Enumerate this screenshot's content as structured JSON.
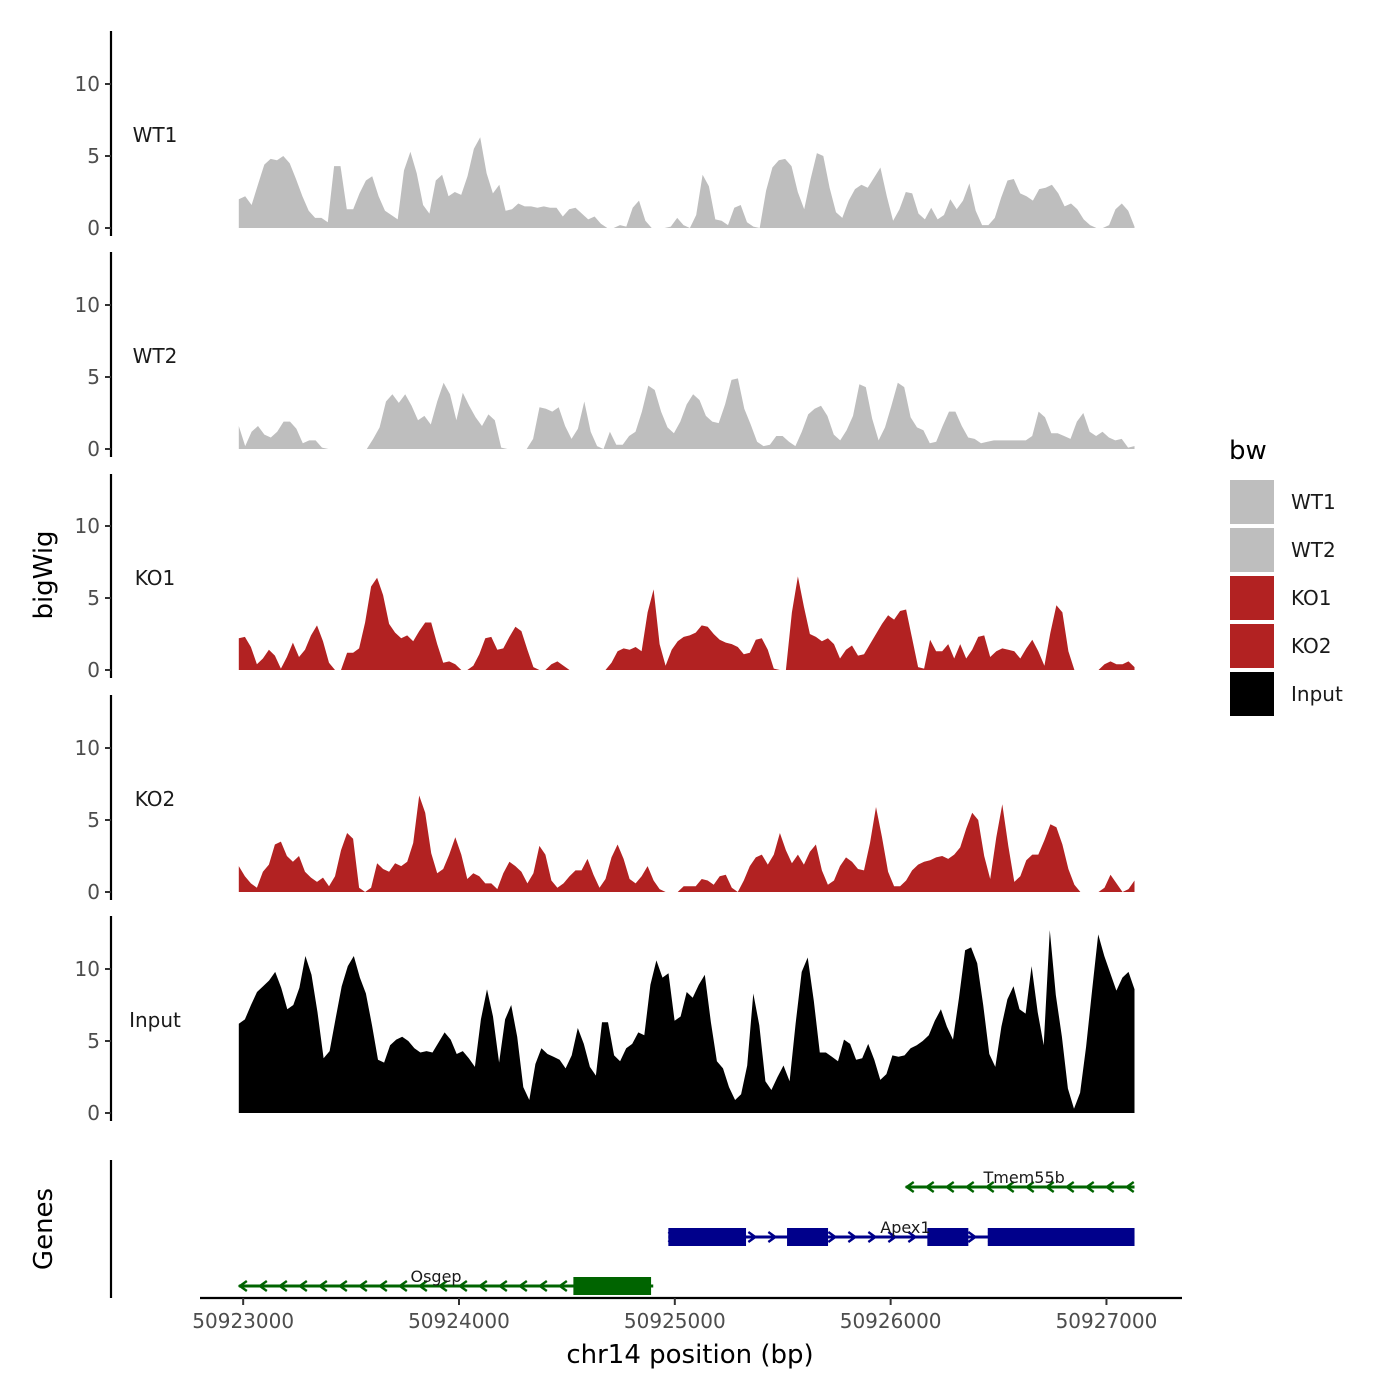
{
  "chart_data": {
    "type": "area",
    "title": "",
    "ylabel": "bigWig",
    "xlabel": "chr14 position (bp)",
    "genes_label": "Genes",
    "xlim": [
      50922800,
      50927350
    ],
    "ylim": [
      0,
      13
    ],
    "x_start": 50922980,
    "x_end": 50927130,
    "x_ticks": [
      50923000,
      50924000,
      50925000,
      50926000,
      50927000
    ],
    "x_tick_labels": [
      "50923000",
      "50924000",
      "50925000",
      "50926000",
      "50927000"
    ],
    "y_ticks": [
      0,
      5,
      10
    ],
    "y_tick_labels": [
      "0",
      "5",
      "10"
    ],
    "legend": {
      "title": "bw",
      "entries": [
        {
          "label": "WT1",
          "color": "#bebebe"
        },
        {
          "label": "WT2",
          "color": "#bebebe"
        },
        {
          "label": "KO1",
          "color": "#b22222"
        },
        {
          "label": "KO2",
          "color": "#b22222"
        },
        {
          "label": "Input",
          "color": "#000000"
        }
      ]
    },
    "tracks": [
      {
        "name": "WT1",
        "color": "#bebebe",
        "values": [
          2,
          2.2,
          1.6,
          3,
          4.4,
          4.8,
          4.7,
          5,
          4.5,
          3.4,
          2.2,
          1.2,
          0.7,
          0.7,
          0.4,
          4.3,
          4.3,
          1.3,
          1.3,
          2.4,
          3.3,
          3.6,
          2.2,
          1.2,
          0.9,
          0.6,
          4,
          5.3,
          3.8,
          1.6,
          1,
          3.3,
          3.7,
          2.2,
          2.5,
          2.3,
          3.6,
          5.5,
          6.3,
          3.8,
          2.4,
          3,
          1.2,
          1.3,
          1.7,
          1.5,
          1.5,
          1.4,
          1.5,
          1.4,
          1.4,
          0.8,
          1.3,
          1.4,
          1,
          0.6,
          0.8,
          0.3,
          0,
          0,
          0.2,
          0.1,
          1.4,
          1.9,
          0.5,
          0,
          0,
          0,
          0.1,
          0.7,
          0.2,
          0,
          0.9,
          3.7,
          2.9,
          0.6,
          0.5,
          0.2,
          1.4,
          1.6,
          0.4,
          0.1,
          0,
          2.6,
          4.2,
          4.7,
          4.8,
          4.3,
          2.5,
          1.3,
          3.4,
          5.2,
          5,
          2.8,
          1.1,
          0.7,
          1.9,
          2.7,
          3,
          2.8,
          3.5,
          4.2,
          2.2,
          0.5,
          1.3,
          2.5,
          2.4,
          1,
          0.6,
          1.4,
          0.6,
          0.9,
          2,
          1.3,
          1.9,
          3.1,
          1.2,
          0.2,
          0.2,
          0.7,
          2.1,
          3.3,
          3.4,
          2.4,
          2.2,
          1.9,
          2.7,
          2.8,
          3,
          2.4,
          1.5,
          1.7,
          1.3,
          0.6,
          0.2,
          0,
          0,
          0.2,
          1.3,
          1.7,
          1.2,
          0.1
        ]
      },
      {
        "name": "WT2",
        "color": "#bebebe",
        "values": [
          1.6,
          0.2,
          1.2,
          1.6,
          1,
          0.8,
          1.2,
          1.9,
          1.9,
          1.4,
          0.4,
          0.6,
          0.6,
          0.1,
          0,
          0,
          0,
          0,
          0,
          0,
          0,
          0.7,
          1.5,
          3.3,
          3.8,
          3.2,
          3.8,
          3,
          2,
          2.3,
          1.7,
          3.3,
          4.6,
          3.8,
          2,
          3.9,
          3,
          2.2,
          1.6,
          2.4,
          2,
          0.1,
          0,
          0,
          0,
          0,
          0.7,
          2.9,
          2.8,
          2.6,
          2.9,
          1.6,
          0.7,
          1.4,
          3.3,
          1.2,
          0.2,
          0,
          1.2,
          0.3,
          0.3,
          0.9,
          1.2,
          2.6,
          4.4,
          4.1,
          2.6,
          1.5,
          1.1,
          1.9,
          3.1,
          3.8,
          3.4,
          2.3,
          1.9,
          1.8,
          3.1,
          4.8,
          4.9,
          2.8,
          1.7,
          0.5,
          0.2,
          0.3,
          0.9,
          0.9,
          0.5,
          0.2,
          1.2,
          2.4,
          2.8,
          3,
          2.3,
          1,
          0.6,
          1.3,
          2.3,
          4.5,
          4.3,
          2.1,
          0.6,
          1.5,
          3,
          4.6,
          4.3,
          2.2,
          1.5,
          1.3,
          0.4,
          0.5,
          1.6,
          2.6,
          2.6,
          1.6,
          0.8,
          0.7,
          0.4,
          0.5,
          0.6,
          0.6,
          0.6,
          0.6,
          0.6,
          0.6,
          0.9,
          2.6,
          2.2,
          1.1,
          1.1,
          0.9,
          0.7,
          1.9,
          2.5,
          1.2,
          0.9,
          1.2,
          0.8,
          0.6,
          0.7,
          0.1,
          0.2
        ]
      },
      {
        "name": "KO1",
        "color": "#b22222",
        "values": [
          2.2,
          2.3,
          1.6,
          0.4,
          0.8,
          1.4,
          1,
          0.1,
          0.9,
          1.9,
          0.9,
          1.4,
          2.4,
          3.1,
          2,
          0.5,
          0,
          0,
          1.2,
          1.2,
          1.5,
          3.3,
          5.8,
          6.4,
          5.2,
          3.2,
          2.6,
          2.2,
          2.4,
          2,
          2.7,
          3.3,
          3.3,
          1.8,
          0.5,
          0.6,
          0.4,
          0,
          0,
          0.3,
          1.1,
          2.2,
          2.3,
          1.4,
          1.5,
          2.3,
          3,
          2.7,
          1.4,
          0.2,
          0,
          0,
          0.4,
          0.6,
          0.3,
          0,
          0,
          0,
          0,
          0,
          0,
          0,
          0.5,
          1.3,
          1.5,
          1.4,
          1.6,
          1.3,
          4,
          5.6,
          1.8,
          0.3,
          1.4,
          2,
          2.3,
          2.4,
          2.6,
          3.1,
          3,
          2.5,
          2.1,
          1.9,
          1.8,
          1.6,
          1.1,
          1.2,
          2.1,
          2.2,
          1.4,
          0.1,
          0,
          0,
          4,
          6.5,
          4.4,
          2.5,
          2.3,
          2,
          2.2,
          1.8,
          0.8,
          1.4,
          1.7,
          1,
          1.1,
          1.8,
          2.5,
          3.2,
          3.8,
          3.5,
          4.1,
          4.2,
          2.2,
          0.2,
          0.1,
          2.1,
          1.3,
          1.3,
          1.8,
          0.8,
          1.8,
          0.8,
          1.4,
          2.3,
          2.4,
          0.9,
          1.3,
          1.5,
          1.4,
          1.3,
          0.8,
          1.5,
          2.1,
          1.3,
          0.3,
          2.6,
          4.5,
          4,
          1.3,
          0,
          0,
          0,
          0,
          0,
          0.4,
          0.6,
          0.4,
          0.4,
          0.6,
          0.2
        ]
      },
      {
        "name": "KO2",
        "color": "#b22222",
        "values": [
          1.8,
          1.1,
          0.6,
          0.3,
          1.4,
          1.9,
          3.3,
          3.5,
          2.5,
          2.1,
          2.5,
          1.4,
          1,
          0.7,
          1,
          0.4,
          1.1,
          2.9,
          4.1,
          3.7,
          0.3,
          0,
          0.3,
          2,
          1.6,
          1.4,
          2,
          1.8,
          2.1,
          3.4,
          6.7,
          5.5,
          2.7,
          1.3,
          1.6,
          2.6,
          3.8,
          2.6,
          0.9,
          1.3,
          1.1,
          0.6,
          0.6,
          0.2,
          1.3,
          2.1,
          1.8,
          1.4,
          0.6,
          1.3,
          3.2,
          2.6,
          0.8,
          0.3,
          0.6,
          1.1,
          1.5,
          1.5,
          2.3,
          1.2,
          0.3,
          0.9,
          2.4,
          3.3,
          2.3,
          0.9,
          0.6,
          1.1,
          1.8,
          0.8,
          0.2,
          0,
          0,
          0,
          0.4,
          0.4,
          0.4,
          0.9,
          0.8,
          0.5,
          1.1,
          1.2,
          0.3,
          0,
          0.8,
          1.8,
          2.4,
          2.6,
          1.9,
          2.6,
          4.1,
          2.9,
          2,
          2.6,
          1.9,
          2.8,
          3.3,
          1.5,
          0.5,
          0.8,
          1.8,
          2.4,
          2.1,
          1.6,
          1.5,
          3.4,
          5.9,
          3.8,
          1.4,
          0.4,
          0.4,
          0.8,
          1.5,
          1.9,
          2.1,
          2.2,
          2.4,
          2.5,
          2.3,
          2.6,
          3.1,
          4.4,
          5.5,
          5,
          2.5,
          0.9,
          3.8,
          6.1,
          3.2,
          0.7,
          1.1,
          2.2,
          2.6,
          2.6,
          3.6,
          4.7,
          4.5,
          3.3,
          1.6,
          0.5,
          0,
          0,
          0,
          0,
          0.3,
          1.2,
          0.6,
          0,
          0.2,
          0.8
        ]
      },
      {
        "name": "Input",
        "color": "#000000",
        "values": [
          6.2,
          6.5,
          7.5,
          8.4,
          8.8,
          9.2,
          9.8,
          8.7,
          7.2,
          7.5,
          8.7,
          10.9,
          9.6,
          7,
          3.8,
          4.3,
          6.6,
          8.8,
          10.2,
          10.9,
          9.4,
          8.3,
          6.1,
          3.7,
          3.5,
          4.7,
          5.1,
          5.3,
          5,
          4.5,
          4.2,
          4.3,
          4.2,
          4.9,
          5.6,
          5.1,
          4.1,
          4.3,
          3.8,
          3.2,
          6.5,
          8.6,
          6.7,
          3.5,
          6.5,
          7.5,
          5.3,
          1.8,
          0.9,
          3.4,
          4.5,
          4.1,
          3.9,
          3.7,
          3.1,
          4,
          5.9,
          4.8,
          3.2,
          2.6,
          6.3,
          6.3,
          4,
          3.6,
          4.5,
          4.8,
          5.6,
          5.4,
          8.9,
          10.6,
          9.4,
          9.7,
          6.4,
          6.7,
          8.4,
          8,
          8.9,
          9.6,
          6.3,
          3.6,
          3.1,
          1.8,
          0.9,
          1.3,
          3.3,
          8.3,
          6.1,
          2.2,
          1.6,
          2.5,
          3.3,
          2.2,
          6.2,
          9.8,
          10.8,
          7.8,
          4.2,
          4.2,
          3.9,
          3.6,
          5.1,
          4.8,
          3.7,
          3.8,
          4.8,
          3.7,
          2.3,
          2.7,
          4,
          3.9,
          4,
          4.5,
          4.7,
          5,
          5.4,
          6.4,
          7.2,
          6,
          5.1,
          8,
          11.3,
          11.5,
          10.4,
          7.5,
          4.1,
          3.2,
          6,
          7.9,
          8.8,
          7.2,
          6.9,
          10.2,
          7,
          4.7,
          12.7,
          8.2,
          5.3,
          1.7,
          0.3,
          1.4,
          4.6,
          8.6,
          12.4,
          10.9,
          9.7,
          8.5,
          9.4,
          9.8,
          8.6
        ]
      }
    ],
    "genes": [
      {
        "name": "Tmem55b",
        "strand": "-",
        "start": 50926070,
        "end": 50927130,
        "color": "#006400",
        "exons": []
      },
      {
        "name": "Apex1",
        "strand": "+",
        "start": 50924970,
        "end": 50927130,
        "color": "#00008b",
        "exons": [
          [
            50924970,
            50925330
          ],
          [
            50925520,
            50925710
          ],
          [
            50926170,
            50926360
          ],
          [
            50926450,
            50927130
          ]
        ]
      },
      {
        "name": "Osgep",
        "strand": "-",
        "start": 50922980,
        "end": 50924900,
        "color": "#006400",
        "exons": [
          [
            50924530,
            50924890
          ]
        ]
      }
    ]
  }
}
